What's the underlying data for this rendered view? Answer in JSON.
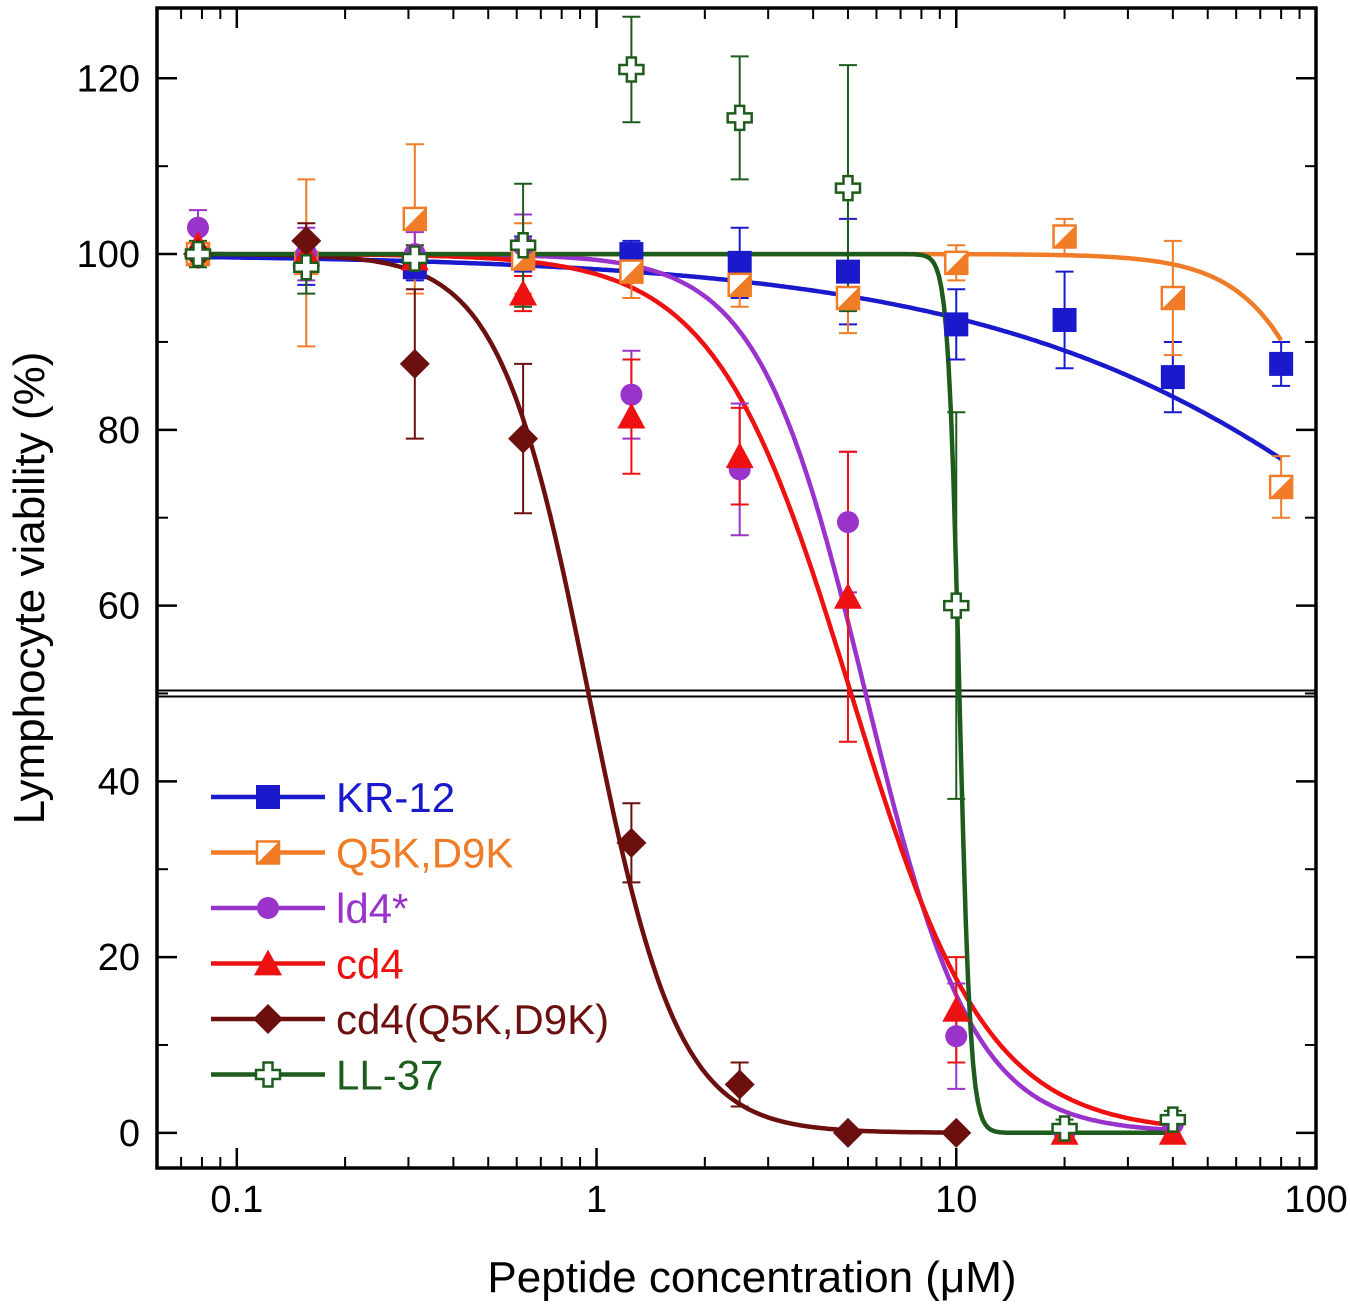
{
  "chart_data": {
    "type": "scatter",
    "xlabel": "Peptide concentration (μM)",
    "ylabel": "Lymphocyte viability (%)",
    "xscale": "log",
    "xlim": [
      0.06,
      100
    ],
    "ylim": [
      -4,
      128
    ],
    "x_ticks": [
      0.1,
      1,
      10,
      100
    ],
    "x_tick_labels": [
      "0.1",
      "1",
      "10",
      "100"
    ],
    "y_ticks": [
      0,
      20,
      40,
      60,
      80,
      100,
      120
    ],
    "y_tick_labels": [
      "0",
      "20",
      "40",
      "60",
      "80",
      "100",
      "120"
    ],
    "reference_line_y": 50,
    "legend_position": "lower-left",
    "series": [
      {
        "name": "KR-12",
        "color": "#1a1acc",
        "marker": "square",
        "x": [
          0.078,
          0.156,
          0.3125,
          0.625,
          1.25,
          2.5,
          5,
          10,
          20,
          40,
          80
        ],
        "y": [
          100,
          99,
          98.5,
          100,
          100,
          99,
          98,
          92,
          92.5,
          86,
          87.5
        ],
        "err": [
          1,
          2.5,
          1.5,
          2,
          1.5,
          4,
          6,
          4,
          5.5,
          4,
          2.5
        ],
        "fit": {
          "model": "hill",
          "top": 100,
          "ic50": 500,
          "hill": 0.65,
          "xmin": 0.078,
          "xmax": 80
        }
      },
      {
        "name": "Q5K,D9K",
        "color": "#f07c28",
        "marker": "half-square",
        "x": [
          0.078,
          0.156,
          0.3125,
          0.625,
          1.25,
          2.5,
          5,
          10,
          20,
          40,
          80
        ],
        "y": [
          100,
          99,
          104,
          99.5,
          98,
          96.5,
          95,
          99,
          102,
          95,
          73.5
        ],
        "err": [
          1,
          9.5,
          8.5,
          4,
          3,
          2.5,
          4,
          2,
          2,
          6.5,
          3.5
        ],
        "fit": {
          "model": "hill",
          "top": 100,
          "ic50": 160,
          "hill": 3.2,
          "xmin": 0.078,
          "xmax": 80
        }
      },
      {
        "name": "ld4*",
        "color": "#9933cc",
        "marker": "circle",
        "x": [
          0.078,
          0.156,
          0.3125,
          0.625,
          1.25,
          2.5,
          5,
          10,
          20,
          40
        ],
        "y": [
          103,
          100,
          100,
          101,
          84,
          75.5,
          69.5,
          11,
          0,
          1
        ],
        "err": [
          2,
          3,
          2.5,
          3.5,
          5,
          7.5,
          8,
          6,
          0.5,
          0.5
        ],
        "fit": {
          "model": "hill",
          "top": 100,
          "ic50": 5.6,
          "hill": 2.9,
          "xmin": 0.078,
          "xmax": 40
        }
      },
      {
        "name": "cd4",
        "color": "#ee1111",
        "marker": "triangle",
        "x": [
          0.078,
          0.156,
          0.3125,
          0.625,
          1.25,
          2.5,
          5,
          10,
          20,
          40
        ],
        "y": [
          101,
          100,
          99.5,
          95.5,
          81.5,
          77,
          61,
          14,
          0,
          0
        ],
        "err": [
          1.5,
          1.5,
          1.5,
          2,
          6.5,
          5.5,
          16.5,
          6,
          0.5,
          0.5
        ],
        "fit": {
          "model": "hill",
          "top": 100,
          "ic50": 5.1,
          "hill": 2.3,
          "xmin": 0.078,
          "xmax": 40
        }
      },
      {
        "name": "cd4(Q5K,D9K)",
        "color": "#6b0f0f",
        "marker": "diamond",
        "x": [
          0.078,
          0.156,
          0.3125,
          0.625,
          1.25,
          2.5,
          5,
          10
        ],
        "y": [
          100,
          101.5,
          87.5,
          79,
          33,
          5.5,
          0,
          0
        ],
        "err": [
          1,
          2,
          8.5,
          8.5,
          4.5,
          2.5,
          0.5,
          0.5
        ],
        "fit": {
          "model": "hill",
          "top": 100,
          "ic50": 0.95,
          "hill": 3.5,
          "xmin": 0.078,
          "xmax": 10
        }
      },
      {
        "name": "LL-37",
        "color": "#1e5c1e",
        "marker": "open-cross",
        "x": [
          0.078,
          0.156,
          0.3125,
          0.625,
          1.25,
          2.5,
          5,
          10,
          20,
          40
        ],
        "y": [
          100,
          98.5,
          99.5,
          101,
          121,
          115.5,
          107.5,
          60,
          0.5,
          1.5
        ],
        "err": [
          1.5,
          3,
          1.5,
          7,
          6,
          7,
          14,
          22,
          1,
          1
        ],
        "fit": {
          "model": "hill",
          "top": 100,
          "ic50": 10.2,
          "hill": 28,
          "xmin": 0.078,
          "xmax": 40
        }
      }
    ]
  }
}
